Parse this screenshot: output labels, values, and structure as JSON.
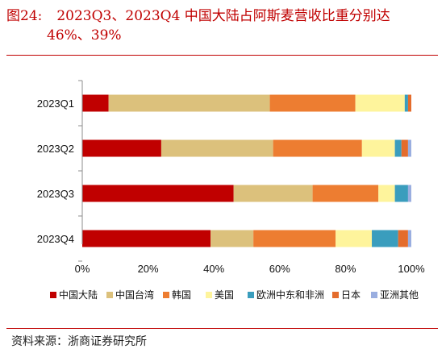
{
  "figure": {
    "label": "图24:",
    "title_line1": "2023Q3、2023Q4 中国大陆占阿斯麦营收比重分别达",
    "title_line2": "46%、39%",
    "source": "资料来源：浙商证券研究所"
  },
  "chart_data": {
    "type": "bar",
    "orientation": "horizontal",
    "stacked": true,
    "categories": [
      "2023Q1",
      "2023Q2",
      "2023Q3",
      "2023Q4"
    ],
    "series": [
      {
        "name": "中国大陆",
        "color": "#c00000",
        "values": [
          8,
          24,
          46,
          39
        ]
      },
      {
        "name": "中国台湾",
        "color": "#dcc17c",
        "values": [
          49,
          34,
          24,
          13
        ]
      },
      {
        "name": "韩国",
        "color": "#ed7d31",
        "values": [
          26,
          27,
          20,
          25
        ]
      },
      {
        "name": "美国",
        "color": "#fef49c",
        "values": [
          15,
          10,
          5,
          11
        ]
      },
      {
        "name": "欧洲中东和非洲",
        "color": "#3a9dbd",
        "values": [
          1,
          2,
          4,
          8
        ]
      },
      {
        "name": "日本",
        "color": "#e46c2c",
        "values": [
          1,
          2,
          0,
          3
        ]
      },
      {
        "name": "亚洲其他",
        "color": "#9aaee0",
        "values": [
          0,
          1,
          1,
          1
        ]
      }
    ],
    "xlim": [
      0,
      100
    ],
    "xticks": [
      "0%",
      "20%",
      "40%",
      "60%",
      "80%",
      "100%"
    ],
    "legend_position": "bottom",
    "grid": false
  }
}
